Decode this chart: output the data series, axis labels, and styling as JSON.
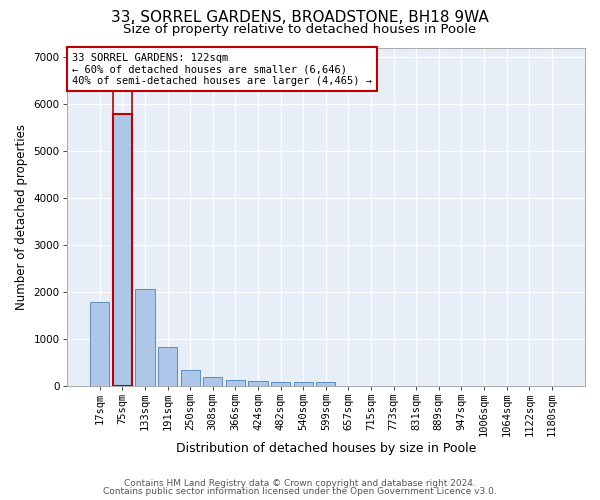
{
  "title1": "33, SORREL GARDENS, BROADSTONE, BH18 9WA",
  "title2": "Size of property relative to detached houses in Poole",
  "xlabel": "Distribution of detached houses by size in Poole",
  "ylabel": "Number of detached properties",
  "categories": [
    "17sqm",
    "75sqm",
    "133sqm",
    "191sqm",
    "250sqm",
    "308sqm",
    "366sqm",
    "424sqm",
    "482sqm",
    "540sqm",
    "599sqm",
    "657sqm",
    "715sqm",
    "773sqm",
    "831sqm",
    "889sqm",
    "947sqm",
    "1006sqm",
    "1064sqm",
    "1122sqm",
    "1180sqm"
  ],
  "values": [
    1780,
    5780,
    2060,
    820,
    340,
    185,
    120,
    100,
    85,
    80,
    75,
    0,
    0,
    0,
    0,
    0,
    0,
    0,
    0,
    0,
    0
  ],
  "bar_color": "#aec6e8",
  "bar_edge_color": "#5a8fc0",
  "highlight_bar_index": 1,
  "highlight_color": "#aec6e8",
  "highlight_edge_color": "#c00000",
  "vline_color": "#c00000",
  "annotation_text": "33 SORREL GARDENS: 122sqm\n← 60% of detached houses are smaller (6,646)\n40% of semi-detached houses are larger (4,465) →",
  "annotation_box_color": "white",
  "annotation_edge_color": "#c00000",
  "ylim": [
    0,
    7200
  ],
  "yticks": [
    0,
    1000,
    2000,
    3000,
    4000,
    5000,
    6000,
    7000
  ],
  "bg_color": "#e8eef8",
  "footer1": "Contains HM Land Registry data © Crown copyright and database right 2024.",
  "footer2": "Contains public sector information licensed under the Open Government Licence v3.0.",
  "title1_fontsize": 11,
  "title2_fontsize": 9.5,
  "xlabel_fontsize": 9,
  "ylabel_fontsize": 8.5,
  "tick_fontsize": 7.5,
  "annotation_fontsize": 7.5,
  "footer_fontsize": 6.5
}
